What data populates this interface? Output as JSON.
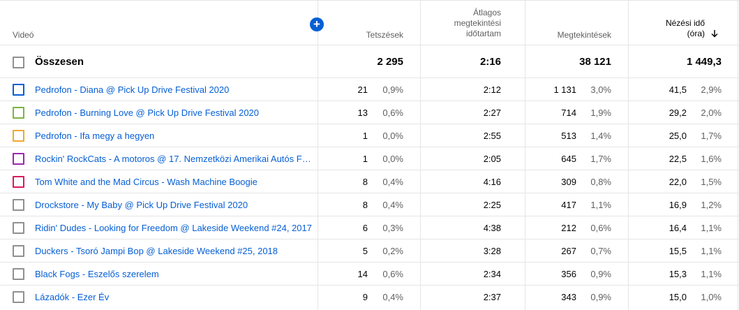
{
  "header": {
    "video": "Videó",
    "likes": "Tetszések",
    "avg_line1": "Átlagos",
    "avg_line2": "megtekintési",
    "avg_line3": "időtartam",
    "views": "Megtekintések",
    "watch_line1": "Nézési idő",
    "watch_line2": "(óra)",
    "add_icon": "+",
    "sort_icon": "arrow-down-icon"
  },
  "total": {
    "label": "Összesen",
    "likes": "2 295",
    "avg": "2:16",
    "views": "38 121",
    "watch": "1 449,3"
  },
  "rows": [
    {
      "title": "Pedrofon - Diana @ Pick Up Drive Festival 2020",
      "color": "#065fd4",
      "likes": "21",
      "likes_pct": "0,9%",
      "avg": "2:12",
      "views": "1 131",
      "views_pct": "3,0%",
      "watch": "41,5",
      "watch_pct": "2,9%"
    },
    {
      "title": "Pedrofon - Burning Love @ Pick Up Drive Festival 2020",
      "color": "#7cb342",
      "likes": "13",
      "likes_pct": "0,6%",
      "avg": "2:27",
      "views": "714",
      "views_pct": "1,9%",
      "watch": "29,2",
      "watch_pct": "2,0%"
    },
    {
      "title": "Pedrofon - Ifa megy a hegyen",
      "color": "#f0a830",
      "likes": "1",
      "likes_pct": "0,0%",
      "avg": "2:55",
      "views": "513",
      "views_pct": "1,4%",
      "watch": "25,0",
      "watch_pct": "1,7%"
    },
    {
      "title": "Rockin' RockCats - A motoros @ 17. Nemzetközi Amerikai Autós Fe…",
      "color": "#9c27b0",
      "likes": "1",
      "likes_pct": "0,0%",
      "avg": "2:05",
      "views": "645",
      "views_pct": "1,7%",
      "watch": "22,5",
      "watch_pct": "1,6%"
    },
    {
      "title": "Tom White and the Mad Circus - Wash Machine Boogie",
      "color": "#d81b60",
      "likes": "8",
      "likes_pct": "0,4%",
      "avg": "4:16",
      "views": "309",
      "views_pct": "0,8%",
      "watch": "22,0",
      "watch_pct": "1,5%"
    },
    {
      "title": "Drockstore - My Baby @ Pick Up Drive Festival 2020",
      "color": "#909090",
      "likes": "8",
      "likes_pct": "0,4%",
      "avg": "2:25",
      "views": "417",
      "views_pct": "1,1%",
      "watch": "16,9",
      "watch_pct": "1,2%"
    },
    {
      "title": "Ridin' Dudes - Looking for Freedom @ Lakeside Weekend #24, 2017",
      "color": "#909090",
      "likes": "6",
      "likes_pct": "0,3%",
      "avg": "4:38",
      "views": "212",
      "views_pct": "0,6%",
      "watch": "16,4",
      "watch_pct": "1,1%"
    },
    {
      "title": "Duckers - Tsoró Jampi Bop @ Lakeside Weekend #25, 2018",
      "color": "#909090",
      "likes": "5",
      "likes_pct": "0,2%",
      "avg": "3:28",
      "views": "267",
      "views_pct": "0,7%",
      "watch": "15,5",
      "watch_pct": "1,1%"
    },
    {
      "title": "Black Fogs - Eszelős szerelem",
      "color": "#909090",
      "likes": "14",
      "likes_pct": "0,6%",
      "avg": "2:34",
      "views": "356",
      "views_pct": "0,9%",
      "watch": "15,3",
      "watch_pct": "1,1%"
    },
    {
      "title": "Lázadók - Ezer Év",
      "color": "#909090",
      "likes": "9",
      "likes_pct": "0,4%",
      "avg": "2:37",
      "views": "343",
      "views_pct": "0,9%",
      "watch": "15,0",
      "watch_pct": "1,0%"
    }
  ]
}
